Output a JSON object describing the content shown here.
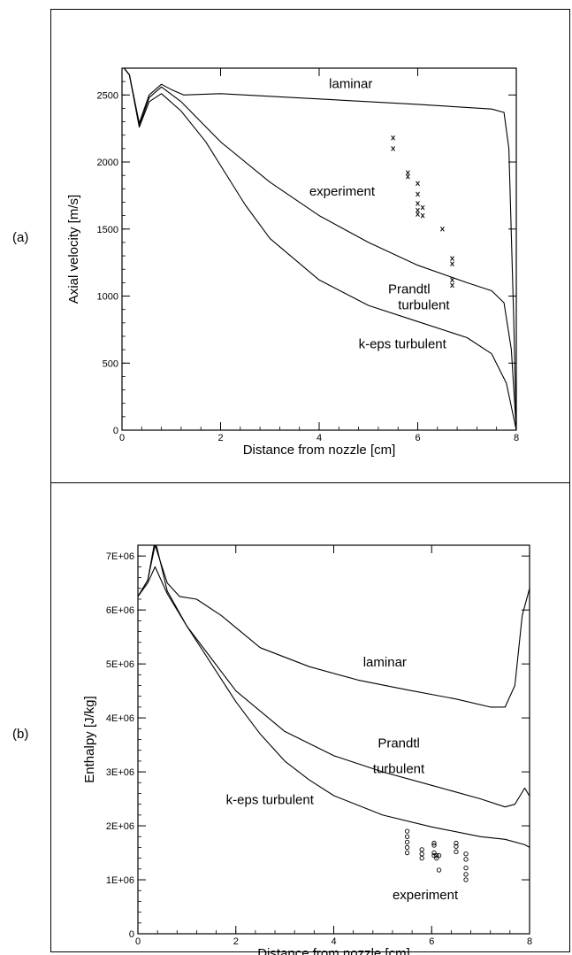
{
  "panels": [
    {
      "label": "(a)"
    },
    {
      "label": "(b)"
    }
  ],
  "chart_data": [
    {
      "type": "line",
      "xlabel": "Distance from nozzle [cm]",
      "ylabel": "Axial velocity [m/s]",
      "xlim": [
        0,
        8
      ],
      "ylim": [
        0,
        2700
      ],
      "xticks": [
        0,
        2,
        4,
        6,
        8
      ],
      "xtick_labels": [
        "0",
        "2",
        "4",
        "6",
        "8"
      ],
      "yticks": [
        0,
        500,
        1000,
        1500,
        2000,
        2500
      ],
      "ytick_labels": [
        "0",
        "500",
        "1000",
        "1500",
        "2000",
        "2500"
      ],
      "grid": false,
      "series": [
        {
          "name": "laminar",
          "x": [
            0,
            0.15,
            0.35,
            0.55,
            0.8,
            1.0,
            1.25,
            2,
            4,
            6,
            7.5,
            7.75,
            7.85,
            7.95,
            8.0
          ],
          "y": [
            2720,
            2650,
            2290,
            2500,
            2580,
            2540,
            2500,
            2510,
            2470,
            2430,
            2395,
            2370,
            2100,
            800,
            0
          ]
        },
        {
          "name": "Prandtl turbulent",
          "x": [
            0,
            0.15,
            0.35,
            0.55,
            0.8,
            1.2,
            2,
            3,
            4,
            5,
            6,
            7,
            7.5,
            7.75,
            7.9,
            8.0
          ],
          "y": [
            2720,
            2650,
            2270,
            2480,
            2560,
            2450,
            2150,
            1850,
            1600,
            1400,
            1230,
            1100,
            1040,
            950,
            600,
            0
          ]
        },
        {
          "name": "k-eps turbulent",
          "x": [
            0,
            0.15,
            0.35,
            0.55,
            0.8,
            1.2,
            1.7,
            2.5,
            3,
            4,
            5,
            6,
            7,
            7.5,
            7.8,
            8.0
          ],
          "y": [
            2720,
            2650,
            2260,
            2450,
            2510,
            2380,
            2150,
            1680,
            1430,
            1120,
            930,
            810,
            690,
            570,
            350,
            0
          ]
        },
        {
          "name": "experiment",
          "style": "x-markers",
          "x": [
            5.5,
            5.5,
            5.8,
            5.8,
            6.0,
            6.0,
            6.0,
            6.0,
            6.0,
            6.1,
            6.1,
            6.5,
            6.7,
            6.7,
            6.7,
            6.7
          ],
          "y": [
            2180,
            2100,
            1920,
            1890,
            1840,
            1760,
            1690,
            1640,
            1610,
            1660,
            1600,
            1500,
            1280,
            1240,
            1120,
            1080
          ]
        }
      ],
      "annotations": [
        {
          "text": "laminar",
          "x": 4.2,
          "y": 2550
        },
        {
          "text": "experiment",
          "x": 3.8,
          "y": 1750
        },
        {
          "text": "Prandtl",
          "x": 5.4,
          "y": 1020
        },
        {
          "text": "turbulent",
          "x": 5.6,
          "y": 900
        },
        {
          "text": "k-eps turbulent",
          "x": 4.8,
          "y": 610
        }
      ]
    },
    {
      "type": "line",
      "xlabel": "Distance from nozzle [cm]",
      "ylabel": "Enthalpy [J/kg]",
      "xlim": [
        0,
        8
      ],
      "ylim": [
        0,
        7200000
      ],
      "xticks": [
        0,
        2,
        4,
        6,
        8
      ],
      "xtick_labels": [
        "0",
        "2",
        "4",
        "6",
        "8"
      ],
      "yticks": [
        0,
        1000000,
        2000000,
        3000000,
        4000000,
        5000000,
        6000000,
        7000000
      ],
      "ytick_labels": [
        "0",
        "1E+06",
        "2E+06",
        "3E+06",
        "4E+06",
        "5E+06",
        "6E+06",
        "7E+06"
      ],
      "grid": false,
      "series": [
        {
          "name": "laminar",
          "x": [
            0,
            0.2,
            0.35,
            0.6,
            0.85,
            1.2,
            1.7,
            2.5,
            3.5,
            4.5,
            5.5,
            6.5,
            7.2,
            7.5,
            7.7,
            7.85,
            8.0
          ],
          "y": [
            6250000,
            6550000,
            7200000,
            6500000,
            6250000,
            6200000,
            5900000,
            5300000,
            4950000,
            4700000,
            4520000,
            4350000,
            4200000,
            4200000,
            4600000,
            5900000,
            6400000
          ]
        },
        {
          "name": "Prandtl turbulent",
          "x": [
            0,
            0.2,
            0.35,
            0.6,
            1.0,
            1.5,
            2,
            3,
            4,
            5,
            6,
            7,
            7.5,
            7.7,
            7.9,
            8.0
          ],
          "y": [
            6250000,
            6500000,
            6800000,
            6300000,
            5700000,
            5100000,
            4500000,
            3750000,
            3300000,
            3000000,
            2750000,
            2500000,
            2350000,
            2400000,
            2700000,
            2550000
          ]
        },
        {
          "name": "k-eps turbulent",
          "x": [
            0,
            0.2,
            0.35,
            0.6,
            1.0,
            1.5,
            2,
            2.5,
            3,
            3.5,
            4,
            5,
            6,
            7,
            7.5,
            7.9,
            8.0
          ],
          "y": [
            6250000,
            6550000,
            7300000,
            6350000,
            5700000,
            5000000,
            4300000,
            3700000,
            3200000,
            2850000,
            2560000,
            2200000,
            1980000,
            1800000,
            1750000,
            1650000,
            1600000
          ]
        },
        {
          "name": "experiment",
          "style": "o-markers",
          "x": [
            5.5,
            5.5,
            5.5,
            5.5,
            5.5,
            5.8,
            5.8,
            5.8,
            6.05,
            6.05,
            6.05,
            6.05,
            6.1,
            6.1,
            6.15,
            6.15,
            6.5,
            6.5,
            6.5,
            6.7,
            6.7,
            6.7,
            6.7,
            6.7
          ],
          "y": [
            1900000,
            1800000,
            1700000,
            1600000,
            1500000,
            1560000,
            1480000,
            1400000,
            1680000,
            1640000,
            1500000,
            1450000,
            1450000,
            1400000,
            1450000,
            1180000,
            1680000,
            1620000,
            1520000,
            1480000,
            1380000,
            1220000,
            1100000,
            1000000
          ]
        }
      ],
      "annotations": [
        {
          "text": "laminar",
          "x": 4.6,
          "y": 4950000
        },
        {
          "text": "Prandtl",
          "x": 4.9,
          "y": 3450000
        },
        {
          "text": "turbulent",
          "x": 4.8,
          "y": 2980000
        },
        {
          "text": "k-eps turbulent",
          "x": 1.8,
          "y": 2400000
        },
        {
          "text": "experiment",
          "x": 5.2,
          "y": 640000
        }
      ]
    }
  ]
}
